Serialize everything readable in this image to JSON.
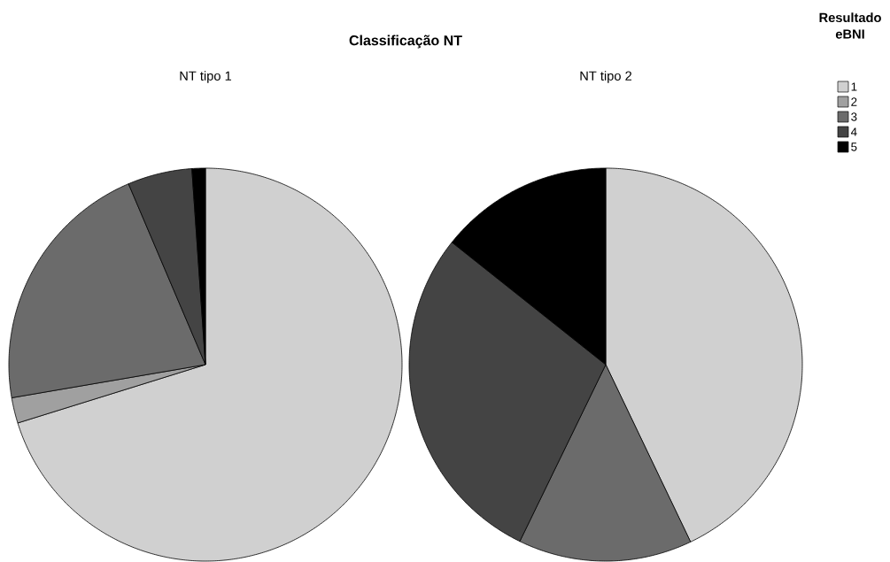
{
  "chart_data": {
    "type": "pie",
    "title": "Classificação NT",
    "categories": [
      "1",
      "2",
      "3",
      "4",
      "5"
    ],
    "colors": [
      "#d0d0d0",
      "#a0a0a0",
      "#6b6b6b",
      "#444444",
      "#000000"
    ],
    "legend": "right",
    "legend_title": "Resultado eBNI",
    "series": [
      {
        "name": "NT tipo 1",
        "values": [
          70.2,
          2.1,
          21.3,
          5.3,
          1.1
        ]
      },
      {
        "name": "NT tipo 2",
        "values": [
          42.9,
          0,
          14.3,
          28.5,
          14.3
        ]
      }
    ]
  }
}
